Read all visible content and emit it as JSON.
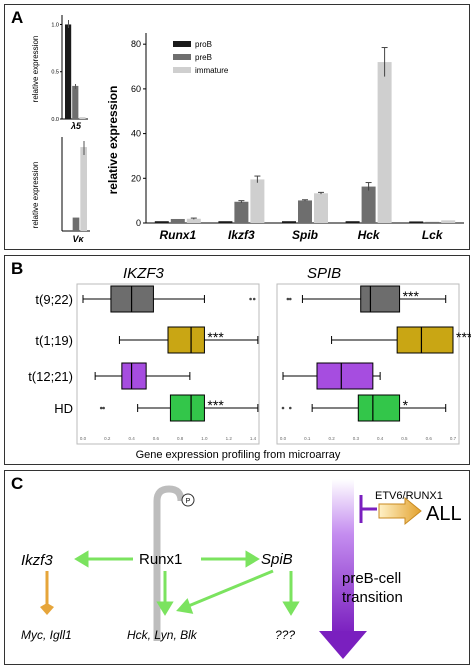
{
  "panels": {
    "a_letter": "A",
    "b_letter": "B",
    "c_letter": "C"
  },
  "colors": {
    "proB": "#1a1a1a",
    "preB": "#6e6e6e",
    "immature": "#cfcfcf",
    "boxDark": "#6d6d6d",
    "boxGold": "#c9a614",
    "boxPurple": "#a64de0",
    "boxGreen": "#33c64a",
    "arrowGreen": "#7be35f",
    "arrowOrange": "#e6a53a",
    "purple": "#7a1fbf"
  },
  "chart_data": [
    {
      "type": "bar",
      "title": "",
      "xlabel": "λ5",
      "ylabel": "relative expression",
      "ylim": [
        0,
        1.1
      ],
      "yticks": [
        "0.0",
        "0.5",
        "1.0"
      ],
      "series": [
        {
          "name": "proB",
          "values": [
            1.0
          ]
        },
        {
          "name": "preB",
          "values": [
            0.35
          ]
        },
        {
          "name": "immature",
          "values": [
            0.02
          ]
        }
      ]
    },
    {
      "type": "bar",
      "title": "",
      "xlabel": "Vκ",
      "ylabel": "relative expression",
      "ylim": [
        0,
        140
      ],
      "series": [
        {
          "name": "proB",
          "values": [
            0
          ]
        },
        {
          "name": "preB",
          "values": [
            20
          ]
        },
        {
          "name": "immature",
          "values": [
            125
          ]
        }
      ]
    },
    {
      "type": "bar",
      "title": "",
      "ylabel": "relative expression",
      "ylim": [
        0,
        85
      ],
      "yticks": [
        "0",
        "20",
        "40",
        "60",
        "80"
      ],
      "categories": [
        "Runx1",
        "Ikzf3",
        "Spib",
        "Hck",
        "Lck"
      ],
      "series": [
        {
          "name": "proB",
          "values": [
            0.8,
            0.8,
            0.8,
            0.8,
            0.7
          ]
        },
        {
          "name": "preB",
          "values": [
            1.8,
            9.5,
            10.1,
            16.3,
            0.5
          ]
        },
        {
          "name": "immature",
          "values": [
            1.9,
            19.5,
            13.3,
            72,
            1.2
          ]
        }
      ],
      "errors": {
        "proB": [
          0.1,
          0.1,
          0.1,
          0.1,
          0.1
        ],
        "preB": [
          0.2,
          0.5,
          0.3,
          1.8,
          0.1
        ],
        "immature": [
          0.3,
          1.5,
          0.4,
          6.5,
          0.2
        ]
      },
      "legend": "top-left"
    },
    {
      "type": "box",
      "title": "IKZF3",
      "categories": [
        "t(9;22)",
        "t(1;19)",
        "t(12;21)",
        "HD"
      ],
      "boxes": [
        {
          "min": 0.0,
          "q1": 0.23,
          "median": 0.4,
          "q3": 0.58,
          "max": 1.0,
          "outliers": [
            1.38,
            1.41
          ]
        },
        {
          "min": 0.3,
          "q1": 0.7,
          "median": 0.89,
          "q3": 1.0,
          "max": 1.44,
          "outliers": []
        },
        {
          "min": 0.1,
          "q1": 0.32,
          "median": 0.4,
          "q3": 0.52,
          "max": 0.88,
          "outliers": []
        },
        {
          "min": 0.45,
          "q1": 0.72,
          "median": 0.89,
          "q3": 1.0,
          "max": 1.44,
          "outliers": [
            0.15,
            0.17
          ]
        }
      ],
      "stars": [
        "",
        "***",
        "",
        "***"
      ],
      "xticks": [
        "0.0",
        "0.2",
        "0.4",
        "0.6",
        "0.8",
        "1.0",
        "1.2",
        "1.4"
      ]
    },
    {
      "type": "box",
      "title": "SPIB",
      "categories": [
        "t(9;22)",
        "t(1;19)",
        "t(12;21)",
        "HD"
      ],
      "boxes": [
        {
          "min": 0.08,
          "q1": 0.32,
          "median": 0.36,
          "q3": 0.48,
          "max": 0.67,
          "outliers": [
            0.02,
            0.03
          ]
        },
        {
          "min": 0.2,
          "q1": 0.47,
          "median": 0.57,
          "q3": 0.7,
          "max": 0.7,
          "outliers": []
        },
        {
          "min": 0.0,
          "q1": 0.14,
          "median": 0.24,
          "q3": 0.37,
          "max": 0.4,
          "outliers": []
        },
        {
          "min": 0.12,
          "q1": 0.31,
          "median": 0.37,
          "q3": 0.48,
          "max": 0.67,
          "outliers": [
            0.0,
            0.03
          ]
        }
      ],
      "stars": [
        "***",
        "***",
        "",
        "*"
      ],
      "xticks": [
        "0.0",
        "0.1",
        "0.2",
        "0.3",
        "0.4",
        "0.5",
        "0.6",
        "0.7"
      ]
    }
  ],
  "panelB": {
    "xlabel": "Gene expression profiling from microarray"
  },
  "panelC": {
    "ikzf3": "Ikzf3",
    "runx1": "Runx1",
    "spib": "SpiB",
    "myc": "Myc, Igll1",
    "hck": "Hck, Lyn, Blk",
    "unknown": "???",
    "p": "P",
    "etv6": "ETV6/RUNX1",
    "all": "ALL",
    "transition1": "preB-cell",
    "transition2": "transition"
  }
}
